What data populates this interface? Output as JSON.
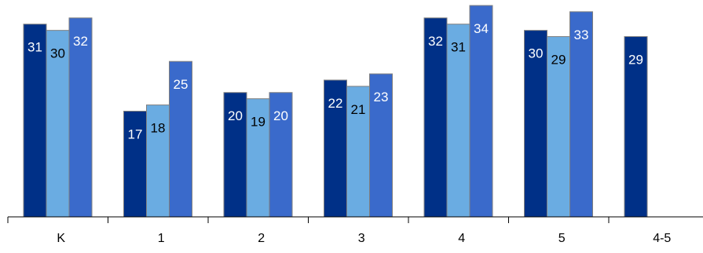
{
  "chart_data": {
    "type": "bar",
    "categories": [
      "K",
      "1",
      "2",
      "3",
      "4",
      "5",
      "4-5"
    ],
    "series": [
      {
        "values": [
          31,
          17,
          20,
          22,
          32,
          30,
          29
        ],
        "color": "#003087",
        "label_color": "#ffffff"
      },
      {
        "values": [
          30,
          18,
          19,
          21,
          31,
          29,
          null
        ],
        "color": "#6aace2",
        "label_color": "#000000"
      },
      {
        "values": [
          32,
          25,
          20,
          23,
          34,
          33,
          null
        ],
        "color": "#3a6acb",
        "label_color": "#ffffff"
      }
    ],
    "ylim": [
      0,
      34
    ],
    "grid": false,
    "legend": "none",
    "axis_color": "#000000",
    "bar_border_color": "#7f7f7f"
  }
}
